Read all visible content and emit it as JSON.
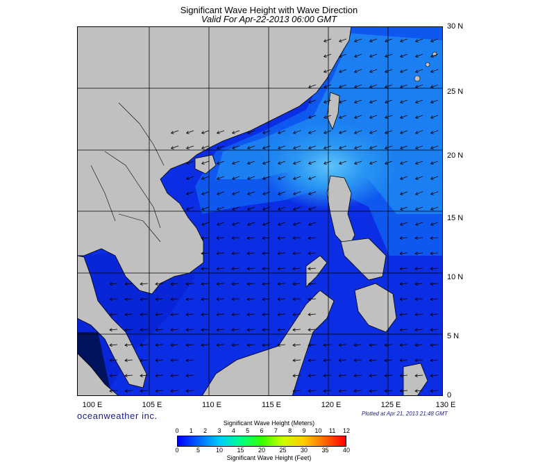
{
  "title": "Significant Wave Height with Wave Direction",
  "subtitle": "Valid For Apr-22-2013 06:00 GMT",
  "latitude_labels": [
    "30 N",
    "25 N",
    "20 N",
    "15 N",
    "10 N",
    "5 N",
    "0"
  ],
  "longitude_labels": [
    "100 E",
    "105 E",
    "110 E",
    "115 E",
    "120 E",
    "125 E",
    "130 E"
  ],
  "branding": "oceanweather inc.",
  "plotted_at": "Plotted at Apr 21, 2013 21:48 GMT",
  "colorbar": {
    "meters_title": "Significant Wave Height (Meters)",
    "feet_title": "Significant Wave Height (Feet)",
    "meters_ticks": [
      "0",
      "1",
      "2",
      "3",
      "4",
      "5",
      "6",
      "7",
      "8",
      "9",
      "10",
      "11",
      "12"
    ],
    "feet_ticks": [
      "0",
      "5",
      "10",
      "15",
      "20",
      "25",
      "30",
      "35",
      "40"
    ],
    "colors": [
      "#0000ff",
      "#0066ff",
      "#00ccff",
      "#00ff88",
      "#33ff00",
      "#ccff00",
      "#ffcc00",
      "#ff6600",
      "#ff0000"
    ]
  },
  "colors": {
    "land": "#c0c0c0",
    "sea_low": "#0b29e6",
    "sea_mid": "#0f55ee",
    "sea_high": "#1e8cf4",
    "sea_peak": "#4ab8f8"
  }
}
